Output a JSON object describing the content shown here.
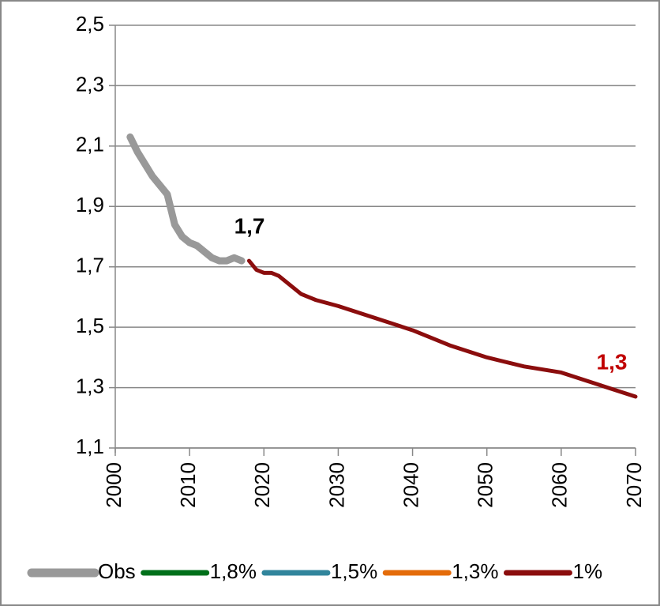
{
  "chart_data": {
    "type": "line",
    "ylim": [
      1.1,
      2.5
    ],
    "yticks": [
      {
        "value": 1.1,
        "label": "1,1"
      },
      {
        "value": 1.3,
        "label": "1,3"
      },
      {
        "value": 1.5,
        "label": "1,5"
      },
      {
        "value": 1.7,
        "label": "1,7"
      },
      {
        "value": 1.9,
        "label": "1,9"
      },
      {
        "value": 2.1,
        "label": "2,1"
      },
      {
        "value": 2.3,
        "label": "2,3"
      },
      {
        "value": 2.5,
        "label": "2,5"
      }
    ],
    "xlim": [
      2000,
      2070
    ],
    "xticks": [
      2000,
      2010,
      2020,
      2030,
      2040,
      2050,
      2060,
      2070
    ],
    "grid": true,
    "legend": "bottom",
    "series": [
      {
        "name": "Obs",
        "color": "#999999",
        "width": 9,
        "label": "1,7",
        "label_color": "#000000",
        "x": [
          2002,
          2003,
          2004,
          2005,
          2006,
          2007,
          2008,
          2009,
          2010,
          2011,
          2012,
          2013,
          2014,
          2015,
          2016,
          2017
        ],
        "values": [
          2.13,
          2.08,
          2.04,
          2.0,
          1.97,
          1.94,
          1.84,
          1.8,
          1.78,
          1.77,
          1.75,
          1.73,
          1.72,
          1.72,
          1.73,
          1.72
        ]
      },
      {
        "name": "1,8%",
        "color": "#00701a",
        "width": 5,
        "x": [],
        "values": []
      },
      {
        "name": "1,5%",
        "color": "#31859c",
        "width": 5,
        "x": [],
        "values": []
      },
      {
        "name": "1,3%",
        "color": "#e46c0a",
        "width": 5,
        "x": [],
        "values": []
      },
      {
        "name": "1%",
        "color": "#8b0d0d",
        "width": 5,
        "label": "1,3",
        "label_color": "#c00000",
        "x": [
          2018,
          2019,
          2020,
          2021,
          2022,
          2023,
          2024,
          2025,
          2026,
          2027,
          2030,
          2035,
          2040,
          2045,
          2050,
          2055,
          2060,
          2065,
          2070
        ],
        "values": [
          1.72,
          1.69,
          1.68,
          1.68,
          1.67,
          1.65,
          1.63,
          1.61,
          1.6,
          1.59,
          1.57,
          1.53,
          1.49,
          1.44,
          1.4,
          1.37,
          1.35,
          1.31,
          1.27
        ]
      }
    ]
  }
}
